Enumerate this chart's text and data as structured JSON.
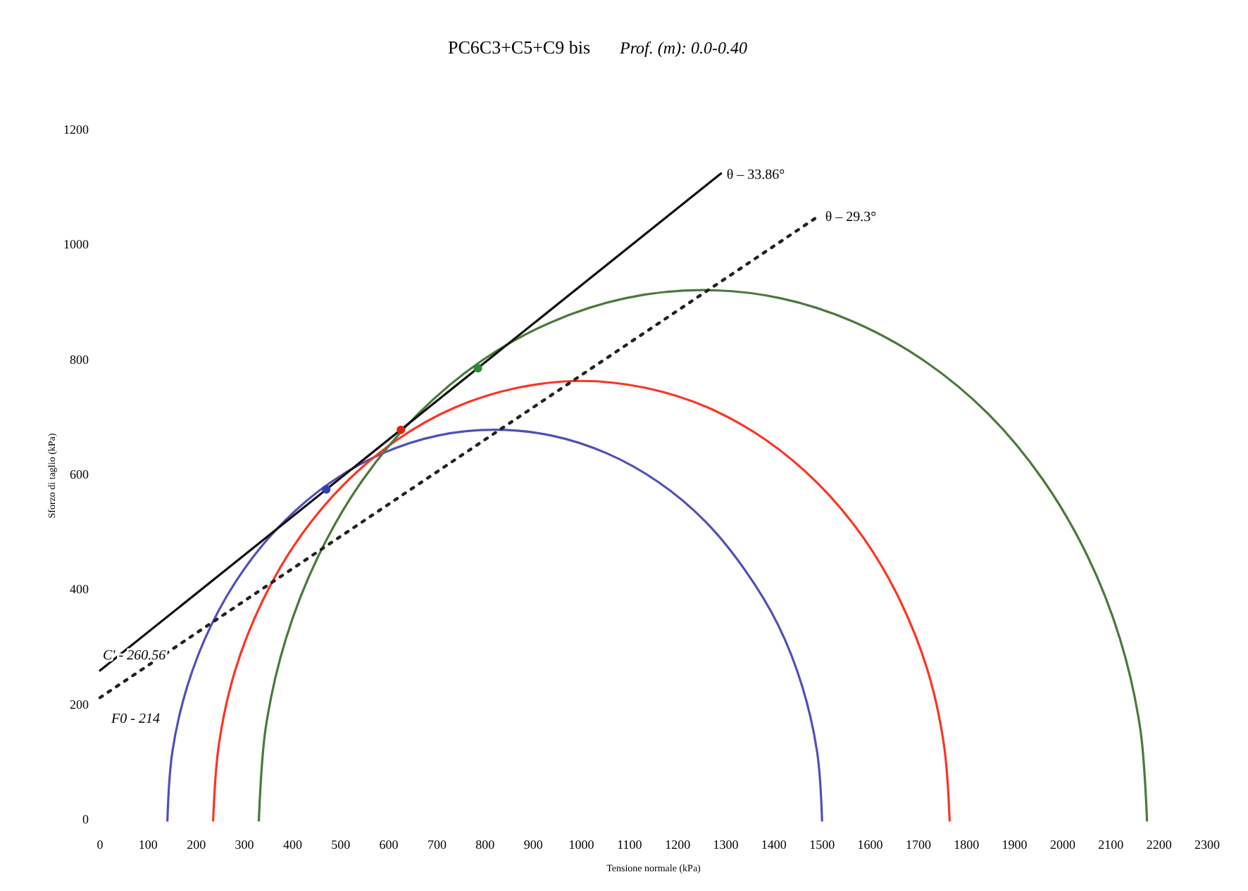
{
  "chart_data": {
    "type": "line",
    "title": "PC6C3+C5+C9 bis",
    "subtitle": "Prof. (m):  0.0-0.40",
    "xlabel": "Tensione normale (kPa)",
    "ylabel": "Sforzo di taglio (kPa)",
    "xlim": [
      0,
      2300
    ],
    "ylim": [
      0,
      1200
    ],
    "xticks": [
      0,
      100,
      200,
      300,
      400,
      500,
      600,
      700,
      800,
      900,
      1000,
      1100,
      1200,
      1300,
      1400,
      1500,
      1600,
      1700,
      1800,
      1900,
      2000,
      2100,
      2200,
      2300
    ],
    "yticks": [
      0,
      200,
      400,
      600,
      800,
      1000,
      1200
    ],
    "grid": false,
    "marker": "none",
    "series": [
      {
        "color": "#5050b8",
        "x": [
          140,
          150,
          181,
          231,
          299,
          383,
          480,
          587,
          702,
          820,
          938,
          1053,
          1160,
          1257,
          1339,
          1409,
          1459,
          1490,
          1500
        ],
        "values": [
          0,
          118,
          233,
          340,
          437,
          521,
          589,
          639,
          670,
          680,
          670,
          639,
          589,
          521,
          437,
          340,
          233,
          118,
          0
        ]
      },
      {
        "color": "#ff3322",
        "x": [
          235,
          247,
          281,
          338,
          414,
          508,
          618,
          738,
          867,
          1000,
          1133,
          1262,
          1382,
          1492,
          1586,
          1662,
          1719,
          1753,
          1765
        ],
        "values": [
          0,
          133,
          262,
          383,
          492,
          586,
          663,
          719,
          753,
          765,
          753,
          719,
          663,
          586,
          492,
          383,
          262,
          133,
          0
        ]
      },
      {
        "color": "#4a7a3a",
        "x": [
          330,
          344,
          386,
          454,
          546,
          660,
          791,
          937,
          1092,
          1253,
          1413,
          1568,
          1714,
          1846,
          1959,
          2051,
          2119,
          2161,
          2175
        ],
        "values": [
          0,
          160,
          316,
          461,
          593,
          707,
          799,
          867,
          909,
          923,
          909,
          867,
          799,
          707,
          593,
          461,
          316,
          160,
          0
        ]
      },
      {
        "color": "#111111",
        "x": [
          0,
          1290
        ],
        "values": [
          261,
          1126
        ],
        "line_style": "solid"
      },
      {
        "color": "#222222",
        "x": [
          0,
          1495
        ],
        "values": [
          214,
          1053
        ],
        "line_style": "dotted"
      },
      {
        "type": "scatter",
        "marker": "circle",
        "color": "#3040b0",
        "x": [
          470
        ],
        "values": [
          576
        ]
      },
      {
        "type": "scatter",
        "marker": "circle",
        "color": "#e02010",
        "x": [
          625
        ],
        "values": [
          680
        ]
      },
      {
        "type": "scatter",
        "marker": "circle",
        "color": "#2a8a3a",
        "x": [
          785
        ],
        "values": [
          787
        ]
      }
    ],
    "annotations": [
      {
        "text": "C' - 260.56",
        "x": 0,
        "y": 261
      },
      {
        "text": "F0 - 214",
        "x": 0,
        "y": 214
      },
      {
        "text": "θ – 33.86°",
        "x": 1290,
        "y": 1126
      },
      {
        "text": "θ – 29.3°",
        "x": 1495,
        "y": 1053
      }
    ]
  }
}
